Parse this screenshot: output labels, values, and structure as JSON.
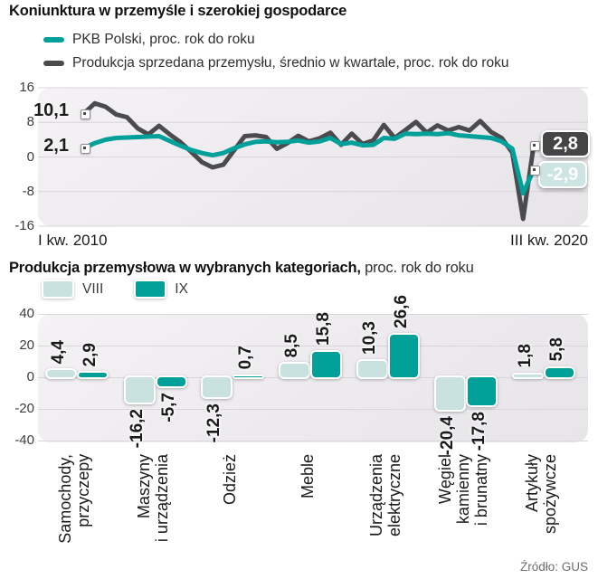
{
  "source_label": "Źródło: GUS",
  "colors": {
    "teal": "#00a09a",
    "teal_light": "#c9e2df",
    "gray_line": "#4b4b4d",
    "badge_dark_bg": "#454547",
    "badge_light_bg": "#cde5e2",
    "grid": "#d8d6d9"
  },
  "chart_data": [
    {
      "type": "line",
      "title": "Koniunktura w przemyśle i szerokiej gospodarce",
      "x_labels": [
        "I kw. 2010",
        "III kw. 2020"
      ],
      "ylim": [
        -16,
        16
      ],
      "y_ticks": [
        16,
        8,
        0,
        -8,
        -16
      ],
      "grid": true,
      "legend_position": "top-left",
      "series": [
        {
          "name": "PKB Polski, proc. rok do roku",
          "color": "#00a09a",
          "first_label": "2,1",
          "last_label": "-2,9",
          "values": [
            2.1,
            3.2,
            4.0,
            4.4,
            4.5,
            4.6,
            4.7,
            4.8,
            3.7,
            2.6,
            1.6,
            0.9,
            0.4,
            0.9,
            2.0,
            2.9,
            3.5,
            3.6,
            3.4,
            3.5,
            3.8,
            3.3,
            3.6,
            4.4,
            3.0,
            3.3,
            2.7,
            2.8,
            4.4,
            4.2,
            5.4,
            5.3,
            5.4,
            5.3,
            5.5,
            5.0,
            4.8,
            4.6,
            4.4,
            3.6,
            1.9,
            -8.4,
            -2.9
          ]
        },
        {
          "name": "Produkcja sprzedana przemysłu, średnio w kwartale, proc. rok do roku",
          "color": "#4b4b4d",
          "first_label": "10,1",
          "last_label": "2,8",
          "values": [
            10.1,
            12.4,
            11.6,
            9.8,
            9.2,
            6.6,
            5.2,
            7.2,
            5.2,
            3.4,
            1.2,
            -1.2,
            -2.4,
            -1.8,
            1.5,
            4.8,
            5.0,
            4.6,
            1.9,
            3.2,
            4.9,
            3.6,
            4.3,
            5.6,
            2.8,
            5.4,
            3.0,
            3.8,
            7.4,
            4.4,
            6.2,
            8.1,
            5.6,
            7.3,
            6.1,
            6.9,
            6.1,
            8.3,
            5.8,
            4.4,
            1.0,
            -14.3,
            2.8
          ]
        }
      ]
    },
    {
      "type": "bar",
      "title": "Produkcja przemysłowa w wybranych kategoriach,",
      "subtitle": " proc. rok do roku",
      "categories": [
        [
          "Samochody,",
          "przyczepy"
        ],
        [
          "Maszyny",
          "i urządzenia"
        ],
        [
          "Odzież"
        ],
        [
          "Meble"
        ],
        [
          "Urządzenia",
          "elektryczne"
        ],
        [
          "Węgiel",
          "kamienny",
          "i brunatny"
        ],
        [
          "Artykuły",
          "spożywcze"
        ]
      ],
      "ylim": [
        -40,
        40
      ],
      "y_ticks": [
        40,
        20,
        0,
        -20,
        -40
      ],
      "grid": true,
      "legend_position": "top-left",
      "series": [
        {
          "name": "VIII",
          "color": "#c9e2df",
          "values": [
            4.4,
            -16.2,
            -12.3,
            8.5,
            10.3,
            -20.4,
            1.8
          ]
        },
        {
          "name": "IX",
          "color": "#00a098",
          "values": [
            2.9,
            -5.7,
            0.7,
            15.8,
            26.6,
            -17.8,
            5.8
          ]
        }
      ],
      "source": "Źródło: GUS"
    }
  ]
}
